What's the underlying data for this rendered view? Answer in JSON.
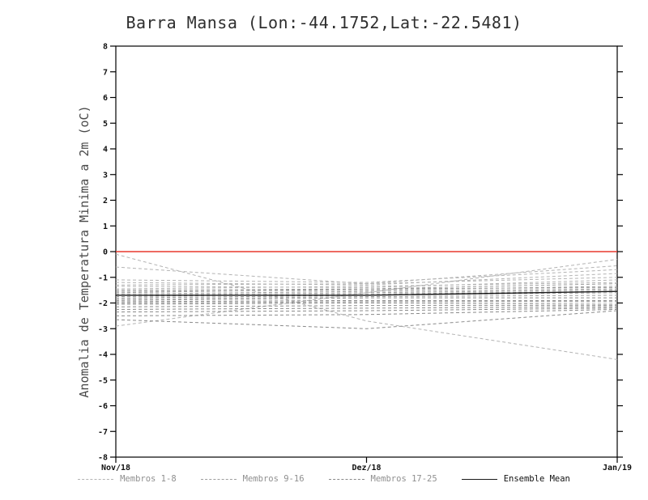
{
  "title": "Barra Mansa (Lon:-44.1752,Lat:-22.5481)",
  "y_axis_label": "Anomalia de Temperatura Minima a 2m (oC)",
  "legend": [
    {
      "label": "Membros 1-8",
      "style": "dashed",
      "color": "#b3b3b3",
      "label_color": "#8f8f8f"
    },
    {
      "label": "Membros 9-16",
      "style": "dashed",
      "color": "#9e9e9e",
      "label_color": "#8f8f8f"
    },
    {
      "label": "Membros 17-25",
      "style": "dashed",
      "color": "#8a8a8a",
      "label_color": "#8f8f8f"
    },
    {
      "label": "Ensemble Mean",
      "style": "solid",
      "color": "#1a1a1a",
      "label_color": "#111111"
    }
  ],
  "chart_data": {
    "type": "line",
    "title": "Barra Mansa (Lon:-44.1752,Lat:-22.5481)",
    "xlabel": "",
    "ylabel": "Anomalia de Temperatura Minima a 2m (oC)",
    "x": [
      "Nov/18",
      "Dez/18",
      "Jan/19"
    ],
    "ylim": [
      -8,
      8
    ],
    "yticks": [
      -8,
      -7,
      -6,
      -5,
      -4,
      -3,
      -2,
      -1,
      0,
      1,
      2,
      3,
      4,
      5,
      6,
      7,
      8
    ],
    "grid": false,
    "legend_position": "bottom",
    "reference_line": {
      "y": 0,
      "color": "#e8392f"
    },
    "series": [
      {
        "name": "Membro 1",
        "style": "dashed",
        "color": "#b3b3b3",
        "values": [
          -0.1,
          -2.7,
          -4.2
        ]
      },
      {
        "name": "Membro 2",
        "style": "dashed",
        "color": "#b3b3b3",
        "values": [
          -2.9,
          -1.6,
          -0.3
        ]
      },
      {
        "name": "Membro 3",
        "style": "dashed",
        "color": "#b3b3b3",
        "values": [
          -0.6,
          -1.25,
          -0.55
        ]
      },
      {
        "name": "Membro 4",
        "style": "dashed",
        "color": "#b3b3b3",
        "values": [
          -1.1,
          -1.2,
          -0.7
        ]
      },
      {
        "name": "Membro 5",
        "style": "dashed",
        "color": "#b3b3b3",
        "values": [
          -1.2,
          -1.3,
          -0.85
        ]
      },
      {
        "name": "Membro 6",
        "style": "dashed",
        "color": "#b3b3b3",
        "values": [
          -1.3,
          -1.25,
          -1.0
        ]
      },
      {
        "name": "Membro 7",
        "style": "dashed",
        "color": "#b3b3b3",
        "values": [
          -1.35,
          -1.4,
          -1.1
        ]
      },
      {
        "name": "Membro 8",
        "style": "dashed",
        "color": "#b3b3b3",
        "values": [
          -1.45,
          -1.35,
          -1.2
        ]
      },
      {
        "name": "Membro 9",
        "style": "dashed",
        "color": "#9e9e9e",
        "values": [
          -1.5,
          -1.45,
          -1.25
        ]
      },
      {
        "name": "Membro 10",
        "style": "dashed",
        "color": "#9e9e9e",
        "values": [
          -1.55,
          -1.5,
          -1.35
        ]
      },
      {
        "name": "Membro 11",
        "style": "dashed",
        "color": "#9e9e9e",
        "values": [
          -1.6,
          -1.45,
          -1.4
        ]
      },
      {
        "name": "Membro 12",
        "style": "dashed",
        "color": "#9e9e9e",
        "values": [
          -1.65,
          -1.55,
          -1.45
        ]
      },
      {
        "name": "Membro 13",
        "style": "dashed",
        "color": "#9e9e9e",
        "values": [
          -1.7,
          -1.6,
          -1.5
        ]
      },
      {
        "name": "Membro 14",
        "style": "dashed",
        "color": "#9e9e9e",
        "values": [
          -1.75,
          -1.65,
          -1.55
        ]
      },
      {
        "name": "Membro 15",
        "style": "dashed",
        "color": "#9e9e9e",
        "values": [
          -1.8,
          -1.7,
          -1.6
        ]
      },
      {
        "name": "Membro 16",
        "style": "dashed",
        "color": "#9e9e9e",
        "values": [
          -1.85,
          -1.75,
          -1.7
        ]
      },
      {
        "name": "Membro 17",
        "style": "dashed",
        "color": "#8a8a8a",
        "values": [
          -1.9,
          -1.8,
          -1.8
        ]
      },
      {
        "name": "Membro 18",
        "style": "dashed",
        "color": "#8a8a8a",
        "values": [
          -1.95,
          -1.9,
          -1.9
        ]
      },
      {
        "name": "Membro 19",
        "style": "dashed",
        "color": "#8a8a8a",
        "values": [
          -2.0,
          -1.95,
          -1.95
        ]
      },
      {
        "name": "Membro 20",
        "style": "dashed",
        "color": "#8a8a8a",
        "values": [
          -2.05,
          -2.0,
          -2.05
        ]
      },
      {
        "name": "Membro 21",
        "style": "dashed",
        "color": "#8a8a8a",
        "values": [
          -2.15,
          -2.1,
          -2.1
        ]
      },
      {
        "name": "Membro 22",
        "style": "dashed",
        "color": "#8a8a8a",
        "values": [
          -2.25,
          -2.2,
          -2.15
        ]
      },
      {
        "name": "Membro 23",
        "style": "dashed",
        "color": "#8a8a8a",
        "values": [
          -2.35,
          -2.3,
          -2.2
        ]
      },
      {
        "name": "Membro 24",
        "style": "dashed",
        "color": "#8a8a8a",
        "values": [
          -2.5,
          -2.45,
          -2.25
        ]
      },
      {
        "name": "Membro 25",
        "style": "dashed",
        "color": "#8a8a8a",
        "values": [
          -2.65,
          -3.0,
          -2.3
        ]
      },
      {
        "name": "Ensemble Mean",
        "style": "solid",
        "color": "#1a1a1a",
        "values": [
          -1.7,
          -1.7,
          -1.55
        ]
      }
    ]
  }
}
